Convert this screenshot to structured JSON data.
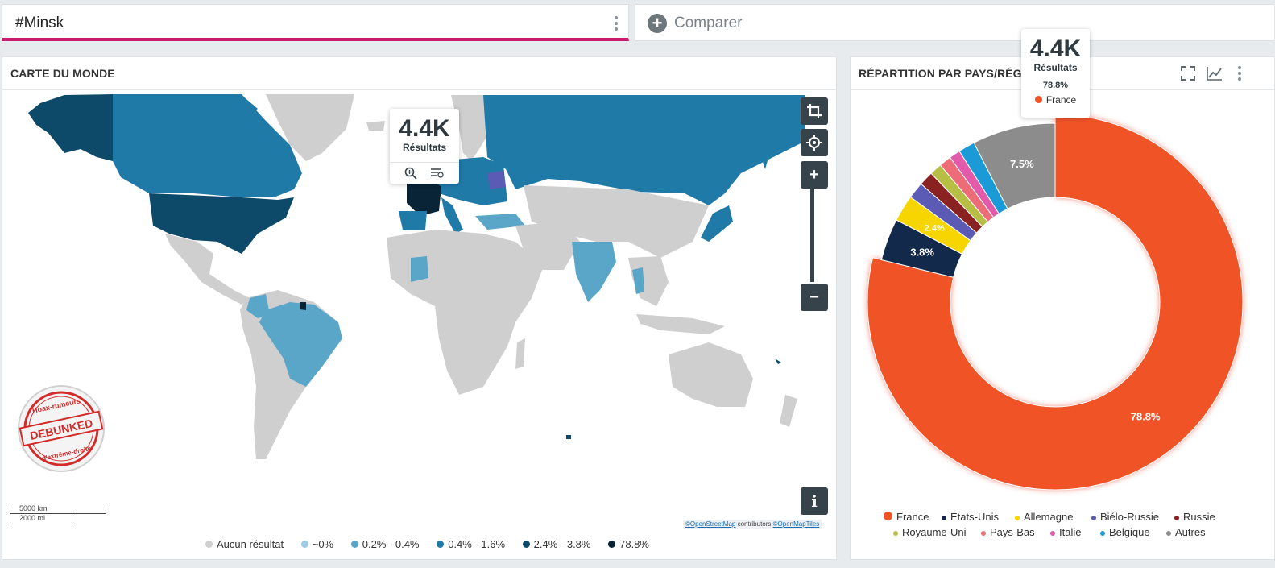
{
  "search": {
    "query": "#Minsk",
    "compare_label": "Comparer"
  },
  "map_panel": {
    "title": "CARTE DU MONDE",
    "tooltip": {
      "value": "4.4K",
      "label": "Résultats"
    },
    "legend": [
      {
        "label": "Aucun résultat",
        "color": "#cfcfcf"
      },
      {
        "label": "~0%",
        "color": "#9ccbe2"
      },
      {
        "label": "0.2% - 0.4%",
        "color": "#5aa6c9"
      },
      {
        "label": "0.4% - 1.6%",
        "color": "#1f7aa8"
      },
      {
        "label": "2.4% - 3.8%",
        "color": "#0d4a6a"
      },
      {
        "label": "78.8%",
        "color": "#082436"
      }
    ],
    "scale": {
      "km": "5000 km",
      "mi": "2000 mi"
    },
    "attribution": {
      "osm": "©OpenStreetMap",
      "contrib": "contributors",
      "tiles": "©OpenMapTiles"
    },
    "stamp": {
      "top": "Hoax-rumeurs",
      "middle": "DEBUNKED",
      "bottom": "d'extrême-droite"
    },
    "controls": {
      "plus": "+",
      "minus": "−",
      "info": "i"
    },
    "icons": [
      "crop-icon",
      "crosshair-icon",
      "zoom-in-icon",
      "filter-list-icon",
      "info-icon"
    ]
  },
  "pie_panel": {
    "title": "RÉPARTITION PAR PAYS/RÉGI",
    "tooltip": {
      "value": "4.4K",
      "label": "Résultats",
      "percent": "78.8%",
      "country": "France"
    },
    "icons": [
      "fullscreen-icon",
      "line-chart-icon",
      "more-vert-icon"
    ]
  },
  "chart_data": {
    "type": "pie",
    "donut": true,
    "slices": [
      {
        "label": "France",
        "value": 78.8,
        "color": "#ef5326",
        "data_label": "78.8%"
      },
      {
        "label": "Etats-Unis",
        "value": 3.8,
        "color": "#13294b",
        "data_label": "3.8%"
      },
      {
        "label": "Allemagne",
        "value": 2.4,
        "color": "#f7d500",
        "data_label": "2.4%"
      },
      {
        "label": "Biélo-Russie",
        "value": 1.5,
        "color": "#5b5bb5",
        "data_label": ""
      },
      {
        "label": "Russie",
        "value": 1.3,
        "color": "#8b2222",
        "data_label": ""
      },
      {
        "label": "Royaume-Uni",
        "value": 1.1,
        "color": "#b6bf44",
        "data_label": ""
      },
      {
        "label": "Pays-Bas",
        "value": 1.1,
        "color": "#ec6c78",
        "data_label": ""
      },
      {
        "label": "Italie",
        "value": 1.0,
        "color": "#e35aaa",
        "data_label": ""
      },
      {
        "label": "Belgique",
        "value": 1.5,
        "color": "#1a9bd7",
        "data_label": ""
      },
      {
        "label": "Autres",
        "value": 7.5,
        "color": "#8c8c8c",
        "data_label": "7.5%"
      }
    ]
  }
}
